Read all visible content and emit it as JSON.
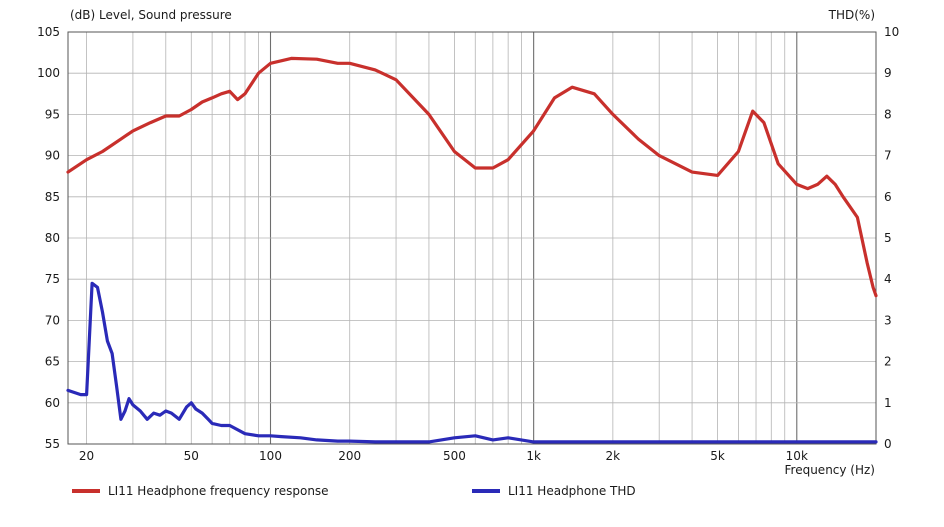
{
  "chart_data": {
    "type": "line",
    "left_axis_label": "(dB)  Level, Sound pressure",
    "right_axis_label": "THD(%)",
    "xlabel": "Frequency  (Hz)",
    "x_scale": "log",
    "xlim": [
      17,
      20000
    ],
    "ylim": [
      55,
      105
    ],
    "y2lim": [
      0,
      10
    ],
    "grid": true,
    "x_tick_labels": [
      {
        "value": 20,
        "label": "20"
      },
      {
        "value": 50,
        "label": "50"
      },
      {
        "value": 100,
        "label": "100"
      },
      {
        "value": 200,
        "label": "200"
      },
      {
        "value": 500,
        "label": "500"
      },
      {
        "value": 1000,
        "label": "1k"
      },
      {
        "value": 2000,
        "label": "2k"
      },
      {
        "value": 5000,
        "label": "5k"
      },
      {
        "value": 10000,
        "label": "10k"
      }
    ],
    "y_ticks": [
      55,
      60,
      65,
      70,
      75,
      80,
      85,
      90,
      95,
      100,
      105
    ],
    "y2_ticks": [
      0,
      1,
      2,
      3,
      4,
      5,
      6,
      7,
      8,
      9,
      10
    ],
    "series": [
      {
        "name": "LI11 Headphone frequency response",
        "axis": "left",
        "color": "#c8302c",
        "x": [
          17,
          20,
          23,
          27,
          30,
          35,
          40,
          45,
          50,
          55,
          60,
          65,
          70,
          75,
          80,
          90,
          100,
          120,
          150,
          180,
          200,
          250,
          300,
          400,
          500,
          600,
          700,
          800,
          1000,
          1200,
          1400,
          1700,
          2000,
          2500,
          3000,
          4000,
          5000,
          6000,
          6800,
          7500,
          8500,
          10000,
          11000,
          12000,
          13000,
          14000,
          15000,
          17000,
          18500,
          19500,
          20000
        ],
        "y": [
          88,
          89.5,
          90.5,
          92,
          93,
          94,
          94.8,
          94.8,
          95.6,
          96.5,
          97,
          97.5,
          97.8,
          96.8,
          97.5,
          100,
          101.2,
          101.8,
          101.7,
          101.2,
          101.2,
          100.4,
          99.2,
          95,
          90.5,
          88.5,
          88.5,
          89.5,
          93,
          97,
          98.3,
          97.5,
          95,
          92,
          90,
          88,
          87.6,
          90.5,
          95.4,
          94,
          89,
          86.5,
          86,
          86.5,
          87.5,
          86.5,
          85,
          82.5,
          77,
          74,
          73
        ]
      },
      {
        "name": "LI11 Headphone THD",
        "axis": "right",
        "color": "#2a2ab8",
        "x": [
          17,
          19,
          20,
          21,
          22,
          23,
          24,
          25,
          26,
          27,
          28,
          29,
          30,
          32,
          34,
          36,
          38,
          40,
          42,
          45,
          48,
          50,
          52,
          55,
          58,
          60,
          65,
          70,
          80,
          90,
          100,
          110,
          130,
          150,
          180,
          200,
          250,
          300,
          400,
          500,
          600,
          700,
          800,
          1000,
          1500,
          2000,
          3000,
          5000,
          10000,
          15000,
          20000
        ],
        "y": [
          1.3,
          1.2,
          1.2,
          3.9,
          3.8,
          3.2,
          2.5,
          2.2,
          1.4,
          0.6,
          0.8,
          1.1,
          0.95,
          0.8,
          0.6,
          0.75,
          0.7,
          0.8,
          0.75,
          0.6,
          0.9,
          1.0,
          0.85,
          0.75,
          0.6,
          0.5,
          0.45,
          0.45,
          0.25,
          0.2,
          0.2,
          0.18,
          0.15,
          0.1,
          0.07,
          0.07,
          0.05,
          0.05,
          0.05,
          0.15,
          0.2,
          0.1,
          0.15,
          0.05,
          0.05,
          0.05,
          0.05,
          0.05,
          0.05,
          0.05,
          0.05
        ]
      }
    ]
  }
}
